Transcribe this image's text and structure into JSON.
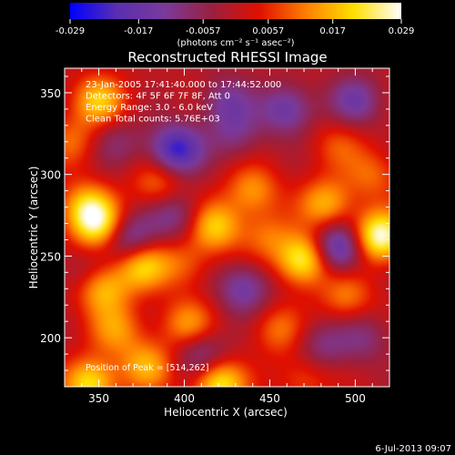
{
  "chart_data": {
    "type": "heatmap",
    "title": "Reconstructed RHESSI Image",
    "xlabel": "Heliocentric X (arcsec)",
    "ylabel": "Heliocentric Y (arcsec)",
    "xlim": [
      330,
      520
    ],
    "ylim": [
      170,
      365
    ],
    "x_ticks": [
      350,
      400,
      450,
      500
    ],
    "y_ticks": [
      200,
      250,
      300,
      350
    ],
    "colorbar": {
      "ticks": [
        "-0.029",
        "-0.017",
        "-0.0057",
        "0.0057",
        "0.017",
        "0.029"
      ],
      "tick_values": [
        -0.029,
        -0.017,
        -0.0057,
        0.0057,
        0.017,
        0.029
      ],
      "range": [
        -0.029,
        0.029
      ],
      "unit": "(photons cm⁻² s⁻¹ asec⁻²)",
      "colors": [
        "#0000ff",
        "#5a2fb0",
        "#7a3a9a",
        "#9a2040",
        "#e01000",
        "#ff8000",
        "#ffe000",
        "#ffffff"
      ]
    },
    "annotations": [
      "23-Jan-2005 17:41:40.000 to 17:44:52.000",
      "Detectors: 4F 5F 6F 7F 8F, Att 0",
      "Energy Range: 3.0 - 6.0 keV",
      "Clean     Total counts: 5.76E+03"
    ],
    "peak_label": "Position of Peak = [514,262]",
    "peak_position": [
      514,
      262
    ],
    "sources": [
      {
        "x": 514,
        "y": 262,
        "v": 0.029
      },
      {
        "x": 470,
        "y": 248,
        "v": 0.026
      },
      {
        "x": 420,
        "y": 172,
        "v": 0.024
      },
      {
        "x": 350,
        "y": 268,
        "v": 0.02
      },
      {
        "x": 375,
        "y": 245,
        "v": 0.021
      },
      {
        "x": 343,
        "y": 280,
        "v": 0.018
      },
      {
        "x": 418,
        "y": 268,
        "v": 0.019
      },
      {
        "x": 352,
        "y": 230,
        "v": 0.018
      },
      {
        "x": 350,
        "y": 345,
        "v": 0.018
      },
      {
        "x": 345,
        "y": 172,
        "v": 0.022
      },
      {
        "x": 378,
        "y": 183,
        "v": 0.016
      },
      {
        "x": 402,
        "y": 208,
        "v": 0.015
      },
      {
        "x": 440,
        "y": 290,
        "v": 0.014
      },
      {
        "x": 483,
        "y": 282,
        "v": 0.017
      },
      {
        "x": 360,
        "y": 205,
        "v": 0.013
      },
      {
        "x": 385,
        "y": 295,
        "v": 0.012
      },
      {
        "x": 495,
        "y": 225,
        "v": 0.012
      },
      {
        "x": 455,
        "y": 205,
        "v": 0.011
      },
      {
        "x": 400,
        "y": 245,
        "v": 0.009
      },
      {
        "x": 448,
        "y": 262,
        "v": 0.01
      },
      {
        "x": 490,
        "y": 318,
        "v": 0.008
      },
      {
        "x": 335,
        "y": 320,
        "v": 0.01
      },
      {
        "x": 470,
        "y": 175,
        "v": 0.009
      },
      {
        "x": 510,
        "y": 300,
        "v": 0.01
      },
      {
        "x": 395,
        "y": 315,
        "v": -0.025
      },
      {
        "x": 490,
        "y": 255,
        "v": -0.023
      },
      {
        "x": 368,
        "y": 260,
        "v": -0.018
      },
      {
        "x": 435,
        "y": 230,
        "v": -0.015
      },
      {
        "x": 460,
        "y": 340,
        "v": -0.016
      },
      {
        "x": 500,
        "y": 345,
        "v": -0.014
      },
      {
        "x": 425,
        "y": 345,
        "v": -0.012
      },
      {
        "x": 410,
        "y": 190,
        "v": -0.014
      },
      {
        "x": 395,
        "y": 275,
        "v": -0.012
      },
      {
        "x": 430,
        "y": 325,
        "v": -0.01
      },
      {
        "x": 480,
        "y": 195,
        "v": -0.01
      },
      {
        "x": 360,
        "y": 320,
        "v": -0.008
      },
      {
        "x": 505,
        "y": 200,
        "v": -0.009
      },
      {
        "x": 340,
        "y": 240,
        "v": -0.006
      }
    ]
  },
  "footer": {
    "date": "6-Jul-2013 09:07"
  }
}
